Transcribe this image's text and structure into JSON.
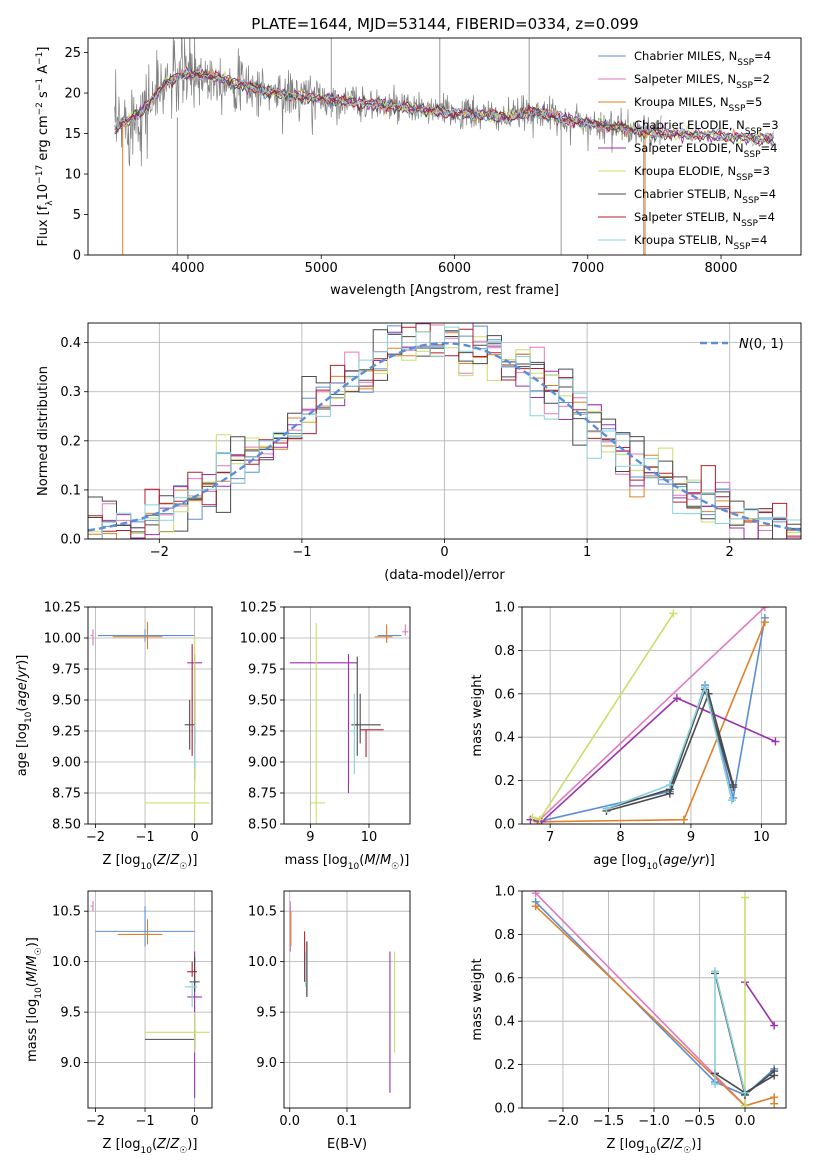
{
  "title": "PLATE=1644, MJD=53144, FIBERID=0334, z=0.099",
  "colors": {
    "chabrier_miles": "#5b8ed8",
    "salpeter_miles": "#e377c2",
    "kroupa_miles": "#e0802a",
    "chabrier_elodie": "#4a4a4a",
    "salpeter_elodie": "#9b30b0",
    "kroupa_elodie": "#c8e06a",
    "chabrier_stelib": "#4a4a4a",
    "salpeter_stelib": "#b0202a",
    "kroupa_stelib": "#88d0dc",
    "data": "#808080",
    "normal": "#5b8ed8"
  },
  "chart_data": [
    {
      "id": "spectrum",
      "type": "line",
      "title": "PLATE=1644, MJD=53144, FIBERID=0334, z=0.099",
      "xlabel": "wavelength [Angstrom, rest frame]",
      "ylabel_parts": [
        "Flux [f",
        "λ",
        "10",
        "−17",
        " erg cm",
        "−2",
        " s",
        "−1",
        " A",
        "−1",
        "]"
      ],
      "xlim": [
        3250,
        8600
      ],
      "ylim": [
        0,
        26.8
      ],
      "xticks": [
        "4000",
        "5000",
        "6000",
        "7000",
        "8000"
      ],
      "yticks": [
        "0",
        "5",
        "10",
        "15",
        "20",
        "25"
      ],
      "continuum_x": [
        3450,
        3550,
        3700,
        3850,
        4000,
        4200,
        4400,
        4600,
        4800,
        5000,
        5200,
        5400,
        5600,
        5800,
        6000,
        6200,
        6400,
        6600,
        6800,
        7000,
        7200,
        7400,
        7600,
        7800,
        8000,
        8200,
        8400
      ],
      "continuum_y": [
        15.5,
        16.5,
        18.5,
        21.5,
        22.5,
        22.0,
        21.0,
        20.2,
        19.6,
        19.3,
        19.0,
        18.6,
        18.2,
        17.9,
        17.5,
        17.3,
        17.0,
        17.8,
        16.8,
        16.3,
        15.8,
        15.2,
        15.0,
        14.9,
        14.7,
        14.5,
        14.3
      ],
      "legend": [
        {
          "label": "Chabrier MILES, N",
          "sub": "SSP",
          "n": "=4",
          "color_key": "chabrier_miles"
        },
        {
          "label": "Salpeter MILES, N",
          "sub": "SSP",
          "n": "=2",
          "color_key": "salpeter_miles"
        },
        {
          "label": "Kroupa MILES, N",
          "sub": "SSP",
          "n": "=5",
          "color_key": "kroupa_miles"
        },
        {
          "label": "Chabrier ELODIE, N",
          "sub": "SSP",
          "n": "=3",
          "color_key": "chabrier_elodie"
        },
        {
          "label": "Salpeter ELODIE, N",
          "sub": "SSP",
          "n": "=4",
          "color_key": "salpeter_elodie"
        },
        {
          "label": "Kroupa ELODIE, N",
          "sub": "SSP",
          "n": "=3",
          "color_key": "kroupa_elodie"
        },
        {
          "label": "Chabrier STELIB, N",
          "sub": "SSP",
          "n": "=4",
          "color_key": "chabrier_stelib"
        },
        {
          "label": "Salpeter STELIB, N",
          "sub": "SSP",
          "n": "=4",
          "color_key": "salpeter_stelib"
        },
        {
          "label": "Kroupa STELIB, N",
          "sub": "SSP",
          "n": "=4",
          "color_key": "kroupa_stelib"
        }
      ],
      "legend_placement": "top-right",
      "grid": false
    },
    {
      "id": "residuals",
      "type": "histogram",
      "xlabel": "(data-model)/error",
      "ylabel": "Normed distribution",
      "xlim": [
        -2.5,
        2.5
      ],
      "ylim": [
        0,
        0.44
      ],
      "xticks": [
        "−2",
        "−1",
        "0",
        "1",
        "2"
      ],
      "yticks": [
        "0.0",
        "0.1",
        "0.2",
        "0.3",
        "0.4"
      ],
      "bin_width": 0.1,
      "legend_label": "(0, 1)",
      "legend_symbol": "N",
      "legend_placement": "top-right",
      "grid": true
    },
    {
      "id": "age_vs_Z",
      "type": "errorbar",
      "xlabel_parts": [
        "Z [log",
        "10",
        "(",
        "Z",
        "/",
        "Z",
        "☉",
        ")]"
      ],
      "ylabel_parts": [
        "age  [log",
        "10",
        "(",
        "age",
        "/",
        "yr",
        ")]"
      ],
      "xlim": [
        -2.15,
        0.35
      ],
      "ylim": [
        8.5,
        10.25
      ],
      "xticks": [
        "−2",
        "−1",
        "0"
      ],
      "yticks": [
        "8.50",
        "8.75",
        "9.00",
        "9.25",
        "9.50",
        "9.75",
        "10.00",
        "10.25"
      ],
      "points": [
        {
          "x": -1.0,
          "xerr": [
            0.95,
            1.0
          ],
          "y": 10.02,
          "yerr": [
            0.05,
            0.05
          ],
          "color_key": "chabrier_miles"
        },
        {
          "x": -2.05,
          "xerr": [
            0.05,
            0.0
          ],
          "y": 10.02,
          "yerr": [
            0.08,
            0.05
          ],
          "color_key": "salpeter_miles"
        },
        {
          "x": -0.95,
          "xerr": [
            0.7,
            0.3
          ],
          "y": 10.01,
          "yerr": [
            0.1,
            0.12
          ],
          "color_key": "kroupa_miles"
        },
        {
          "x": 0.0,
          "xerr": [
            0.0,
            0.0
          ],
          "y": 9.3,
          "yerr": [
            0.15,
            0.2
          ],
          "color_key": "chabrier_elodie"
        },
        {
          "x": 0.0,
          "xerr": [
            0.15,
            0.15
          ],
          "y": 9.8,
          "yerr": [
            0.95,
            0.07
          ],
          "color_key": "salpeter_elodie"
        },
        {
          "x": 0.0,
          "xerr": [
            1.0,
            0.3
          ],
          "y": 8.67,
          "yerr": [
            0.3,
            1.35
          ],
          "color_key": "kroupa_elodie"
        },
        {
          "x": -0.1,
          "xerr": [
            0.1,
            0.1
          ],
          "y": 9.3,
          "yerr": [
            0.2,
            0.2
          ],
          "color_key": "chabrier_stelib"
        },
        {
          "x": -0.05,
          "xerr": [
            0.0,
            0.0
          ],
          "y": 9.1,
          "yerr": [
            0.05,
            0.85
          ],
          "color_key": "salpeter_stelib"
        },
        {
          "x": 0.0,
          "xerr": [
            0.0,
            0.0
          ],
          "y": 9.25,
          "yerr": [
            0.3,
            0.05
          ],
          "color_key": "kroupa_stelib"
        }
      ],
      "grid": true
    },
    {
      "id": "age_vs_mass",
      "type": "errorbar",
      "xlabel_parts": [
        "mass [log",
        "10",
        "(",
        "M",
        "/",
        "M",
        "☉",
        ")]"
      ],
      "xlim": [
        8.55,
        10.7
      ],
      "ylim": [
        8.5,
        10.25
      ],
      "xticks": [
        "9",
        "10"
      ],
      "yticks": [
        "8.50",
        "8.75",
        "9.00",
        "9.25",
        "9.50",
        "9.75",
        "10.00",
        "10.25"
      ],
      "points": [
        {
          "x": 10.3,
          "xerr": [
            0.15,
            0.25
          ],
          "y": 10.02,
          "yerr": [
            0.05,
            0.05
          ],
          "color_key": "chabrier_miles"
        },
        {
          "x": 10.62,
          "xerr": [
            0.05,
            0.05
          ],
          "y": 10.05,
          "yerr": [
            0.03,
            0.06
          ],
          "color_key": "salpeter_miles"
        },
        {
          "x": 10.3,
          "xerr": [
            0.2,
            0.1
          ],
          "y": 10.01,
          "yerr": [
            0.05,
            0.1
          ],
          "color_key": "kroupa_miles"
        },
        {
          "x": 9.85,
          "xerr": [
            0.15,
            0.35
          ],
          "y": 9.3,
          "yerr": [
            0.15,
            0.25
          ],
          "color_key": "chabrier_elodie"
        },
        {
          "x": 9.65,
          "xerr": [
            1.0,
            0.15
          ],
          "y": 9.8,
          "yerr": [
            1.05,
            0.07
          ],
          "color_key": "salpeter_elodie"
        },
        {
          "x": 9.1,
          "xerr": [
            0.1,
            0.15
          ],
          "y": 8.67,
          "yerr": [
            0.3,
            1.45
          ],
          "color_key": "kroupa_elodie"
        },
        {
          "x": 9.8,
          "xerr": [
            0.05,
            0.0
          ],
          "y": 9.3,
          "yerr": [
            0.25,
            0.55
          ],
          "color_key": "chabrier_stelib"
        },
        {
          "x": 9.95,
          "xerr": [
            0.1,
            0.3
          ],
          "y": 9.26,
          "yerr": [
            0.22,
            0.0
          ],
          "color_key": "salpeter_stelib"
        },
        {
          "x": 9.75,
          "xerr": [
            0.1,
            0.05
          ],
          "y": 9.25,
          "yerr": [
            0.35,
            0.3
          ],
          "color_key": "kroupa_stelib"
        }
      ],
      "grid": true
    },
    {
      "id": "mass_weight_vs_age",
      "type": "line",
      "xlabel_parts": [
        "age  [log",
        "10",
        "(",
        "age",
        "/",
        "yr",
        ")]"
      ],
      "ylabel": "mass weight",
      "xlim": [
        6.6,
        10.35
      ],
      "ylim": [
        0,
        1.0
      ],
      "xticks": [
        "7",
        "8",
        "9",
        "10"
      ],
      "yticks": [
        "0.0",
        "0.2",
        "0.4",
        "0.6",
        "0.8",
        "1.0"
      ],
      "series": [
        {
          "color_key": "chabrier_miles",
          "x": [
            6.82,
            8.7,
            9.2,
            9.6,
            10.05
          ],
          "y": [
            0.01,
            0.15,
            0.64,
            0.12,
            0.95
          ]
        },
        {
          "color_key": "salpeter_miles",
          "x": [
            6.82,
            10.05
          ],
          "y": [
            0.01,
            1.0
          ]
        },
        {
          "color_key": "kroupa_miles",
          "x": [
            6.82,
            8.9,
            10.05
          ],
          "y": [
            0.01,
            0.02,
            0.93
          ]
        },
        {
          "color_key": "chabrier_elodie",
          "x": [
            7.8,
            8.7,
            9.2,
            9.6
          ],
          "y": [
            0.07,
            0.16,
            0.62,
            0.17
          ]
        },
        {
          "color_key": "salpeter_elodie",
          "x": [
            6.72,
            6.88,
            8.8,
            10.2
          ],
          "y": [
            0.02,
            0.01,
            0.58,
            0.38
          ]
        },
        {
          "color_key": "kroupa_elodie",
          "x": [
            6.75,
            6.85,
            8.75
          ],
          "y": [
            0.03,
            0.02,
            0.97
          ]
        },
        {
          "color_key": "chabrier_stelib",
          "x": [
            7.8,
            8.7,
            9.25,
            9.6
          ],
          "y": [
            0.06,
            0.14,
            0.6,
            0.18
          ]
        },
        {
          "color_key": "kroupa_stelib",
          "x": [
            7.8,
            8.7,
            9.2,
            9.58
          ],
          "y": [
            0.07,
            0.18,
            0.63,
            0.11
          ]
        }
      ],
      "grid": true
    },
    {
      "id": "mass_vs_Z",
      "type": "errorbar",
      "xlabel_parts": [
        "Z [log",
        "10",
        "(",
        "Z",
        "/",
        "Z",
        "☉",
        ")]"
      ],
      "ylabel_parts": [
        "mass [log",
        "10",
        "(",
        "M",
        "/",
        "M",
        "☉",
        ")]"
      ],
      "xlim": [
        -2.15,
        0.35
      ],
      "ylim": [
        8.55,
        10.7
      ],
      "xticks": [
        "−2",
        "−1",
        "0"
      ],
      "yticks": [
        "9.0",
        "9.5",
        "10.0",
        "10.5"
      ],
      "points": [
        {
          "x": -1.0,
          "xerr": [
            1.0,
            1.0
          ],
          "y": 10.3,
          "yerr": [
            0.15,
            0.25
          ],
          "color_key": "chabrier_miles"
        },
        {
          "x": -2.05,
          "xerr": [
            0.05,
            0.0
          ],
          "y": 10.55,
          "yerr": [
            0.05,
            0.05
          ],
          "color_key": "salpeter_miles"
        },
        {
          "x": -0.95,
          "xerr": [
            0.6,
            0.3
          ],
          "y": 10.27,
          "yerr": [
            0.1,
            0.15
          ],
          "color_key": "kroupa_miles"
        },
        {
          "x": 0.0,
          "xerr": [
            1.0,
            0.0
          ],
          "y": 9.23,
          "yerr": [
            0.1,
            0.1
          ],
          "color_key": "chabrier_elodie"
        },
        {
          "x": 0.0,
          "xerr": [
            0.15,
            0.15
          ],
          "y": 9.65,
          "yerr": [
            1.0,
            0.45
          ],
          "color_key": "salpeter_elodie"
        },
        {
          "x": 0.0,
          "xerr": [
            1.0,
            0.3
          ],
          "y": 9.3,
          "yerr": [
            0.2,
            0.2
          ],
          "color_key": "kroupa_elodie"
        },
        {
          "x": 0.0,
          "xerr": [
            0.1,
            0.1
          ],
          "y": 9.8,
          "yerr": [
            0.1,
            0.25
          ],
          "color_key": "chabrier_stelib"
        },
        {
          "x": -0.05,
          "xerr": [
            0.1,
            0.1
          ],
          "y": 9.9,
          "yerr": [
            0.05,
            0.1
          ],
          "color_key": "salpeter_stelib"
        },
        {
          "x": -0.05,
          "xerr": [
            0.15,
            0.1
          ],
          "y": 9.75,
          "yerr": [
            0.2,
            0.05
          ],
          "color_key": "kroupa_stelib"
        }
      ],
      "grid": true
    },
    {
      "id": "mass_vs_EBV",
      "type": "errorbar",
      "xlabel": "E(B-V)",
      "xlim": [
        -0.01,
        0.21
      ],
      "ylim": [
        8.55,
        10.7
      ],
      "xticks": [
        "0.0",
        "0.1"
      ],
      "yticks": [
        "9.0",
        "9.5",
        "10.0",
        "10.5"
      ],
      "points": [
        {
          "x": 0.001,
          "yval": 10.3,
          "yerr": [
            0.2,
            0.25
          ],
          "color_key": "chabrier_miles"
        },
        {
          "x": 0.001,
          "yval": 10.4,
          "yerr": [
            0.3,
            0.2
          ],
          "color_key": "salpeter_miles"
        },
        {
          "x": 0.002,
          "yval": 10.3,
          "yerr": [
            0.15,
            0.2
          ],
          "color_key": "kroupa_miles"
        },
        {
          "x": 0.03,
          "yval": 9.95,
          "yerr": [
            0.3,
            0.25
          ],
          "color_key": "chabrier_elodie"
        },
        {
          "x": 0.175,
          "yval": 9.7,
          "yerr": [
            1.0,
            0.4
          ],
          "color_key": "salpeter_elodie"
        },
        {
          "x": 0.183,
          "yval": 9.6,
          "yerr": [
            0.5,
            0.5
          ],
          "color_key": "kroupa_elodie"
        },
        {
          "x": 0.03,
          "yval": 9.9,
          "yerr": [
            0.25,
            0.3
          ],
          "color_key": "chabrier_stelib"
        },
        {
          "x": 0.026,
          "yval": 10.0,
          "yerr": [
            0.2,
            0.3
          ],
          "color_key": "salpeter_stelib"
        },
        {
          "x": 0.028,
          "yval": 9.9,
          "yerr": [
            0.15,
            0.2
          ],
          "color_key": "kroupa_stelib"
        }
      ],
      "grid": true
    },
    {
      "id": "mass_weight_vs_Z",
      "type": "line",
      "xlabel_parts": [
        "Z [log",
        "10",
        "(",
        "Z",
        "/",
        "Z",
        "☉",
        ")]"
      ],
      "ylabel": "mass weight",
      "xlim": [
        -2.45,
        0.45
      ],
      "ylim": [
        0,
        1.0
      ],
      "xticks": [
        "−2.0",
        "−1.5",
        "−1.0",
        "−0.5",
        "0.0"
      ],
      "yticks": [
        "0.0",
        "0.2",
        "0.4",
        "0.6",
        "0.8",
        "1.0"
      ],
      "series": [
        {
          "color_key": "chabrier_miles",
          "x": [
            -2.3,
            -0.33,
            0.0,
            0.32
          ],
          "y": [
            0.95,
            0.12,
            0.06,
            0.18
          ]
        },
        {
          "color_key": "salpeter_miles",
          "x": [
            -2.3,
            0.0
          ],
          "y": [
            0.99,
            0.01
          ]
        },
        {
          "color_key": "kroupa_miles",
          "x": [
            -2.3,
            0.0,
            0.32,
            0.32
          ],
          "y": [
            0.93,
            0.01,
            0.05,
            0.02
          ]
        },
        {
          "color_key": "chabrier_elodie",
          "x": [
            -0.33,
            0.0,
            0.32
          ],
          "y": [
            0.16,
            0.07,
            0.15
          ]
        },
        {
          "color_key": "salpeter_elodie",
          "x": [
            0.0,
            0.32
          ],
          "y": [
            0.58,
            0.38
          ]
        },
        {
          "color_key": "kroupa_elodie",
          "x": [
            0.0,
            0.0
          ],
          "y": [
            0.01,
            0.97
          ]
        },
        {
          "color_key": "chabrier_stelib",
          "x": [
            -0.33,
            0.0,
            0.32
          ],
          "y": [
            0.62,
            0.06,
            0.17
          ]
        },
        {
          "color_key": "kroupa_stelib",
          "x": [
            -0.33,
            -0.33,
            0.0
          ],
          "y": [
            0.11,
            0.63,
            0.07
          ]
        }
      ],
      "grid": true
    }
  ]
}
